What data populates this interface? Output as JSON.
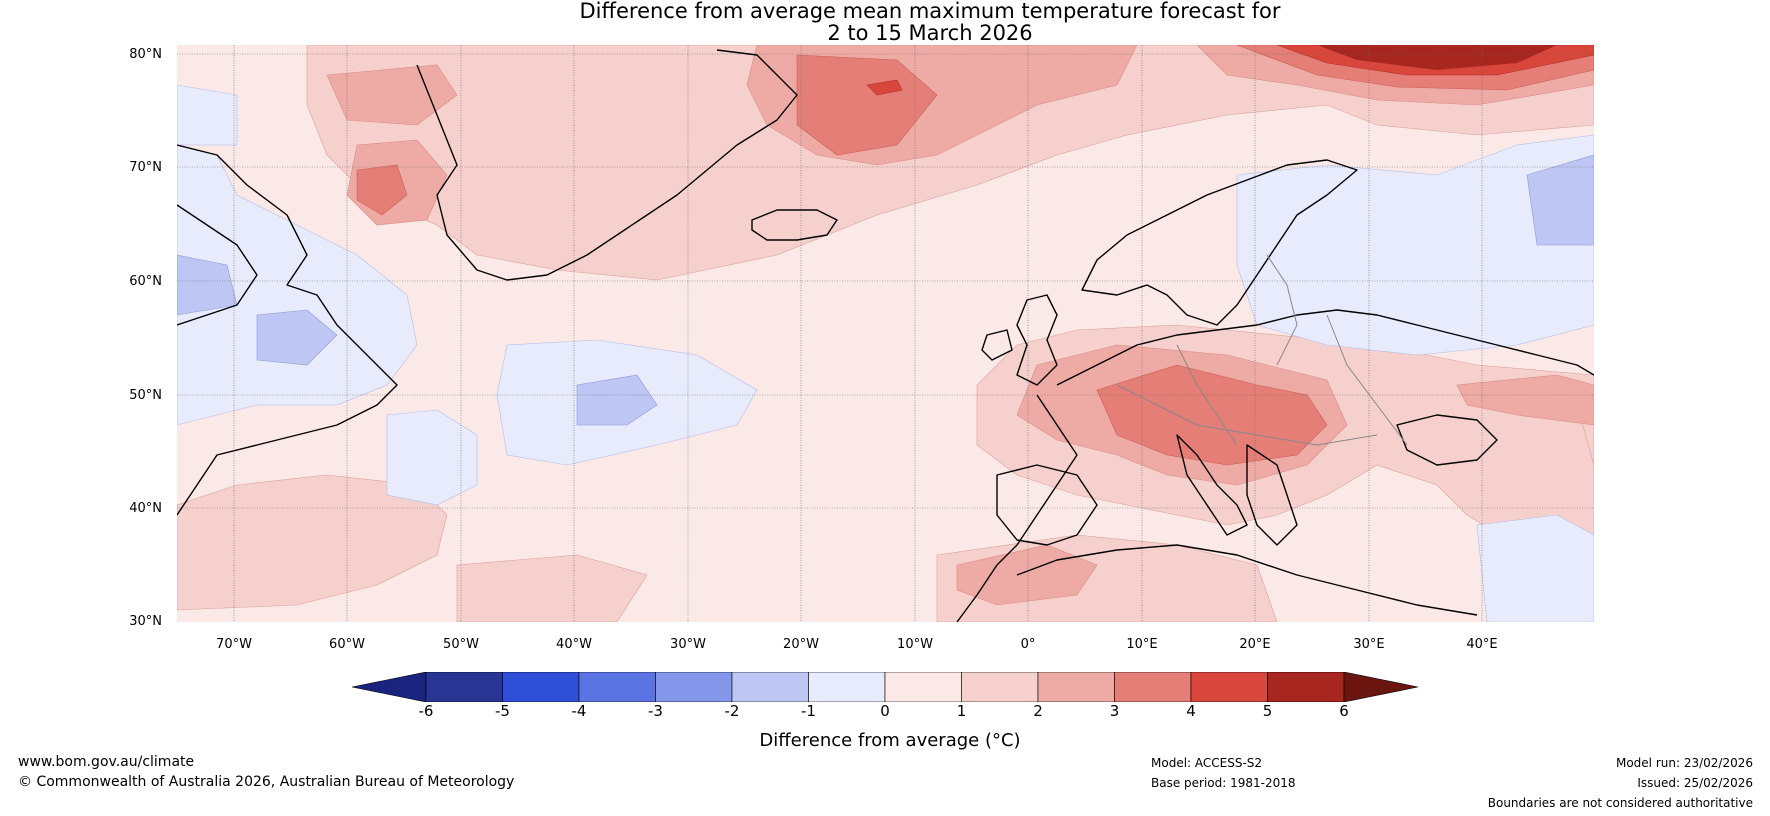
{
  "title_line1": "Difference from average mean maximum temperature forecast for",
  "title_line2": "2 to 15 March 2026",
  "lat_labels": [
    "80°N",
    "70°N",
    "60°N",
    "50°N",
    "40°N",
    "30°N"
  ],
  "lon_labels": [
    "70°W",
    "60°W",
    "50°W",
    "40°W",
    "30°W",
    "20°W",
    "10°W",
    "0°",
    "10°E",
    "20°E",
    "30°E",
    "40°E"
  ],
  "colorbar": {
    "ticks": [
      "-6",
      "-5",
      "-4",
      "-3",
      "-2",
      "-1",
      "0",
      "1",
      "2",
      "3",
      "4",
      "5",
      "6"
    ],
    "colors": [
      "#1a237e",
      "#283593",
      "#2f4fd8",
      "#5b74e3",
      "#8597ea",
      "#bec6f3",
      "#e8ebfb",
      "#fbe9e7",
      "#f6d0cc",
      "#eeaaa5",
      "#e57e76",
      "#d9463c",
      "#a82620",
      "#6b1510"
    ],
    "label": "Difference from average (°C)"
  },
  "footer": {
    "url": "www.bom.gov.au/climate",
    "copyright": "© Commonwealth of Australia 2026, Australian Bureau of Meteorology",
    "model": "Model: ACCESS-S2",
    "base_period": "Base period: 1981-2018",
    "model_run": "Model run: 23/02/2026",
    "issued": "Issued: 25/02/2026",
    "disclaimer": "Boundaries are not considered authoritative"
  }
}
